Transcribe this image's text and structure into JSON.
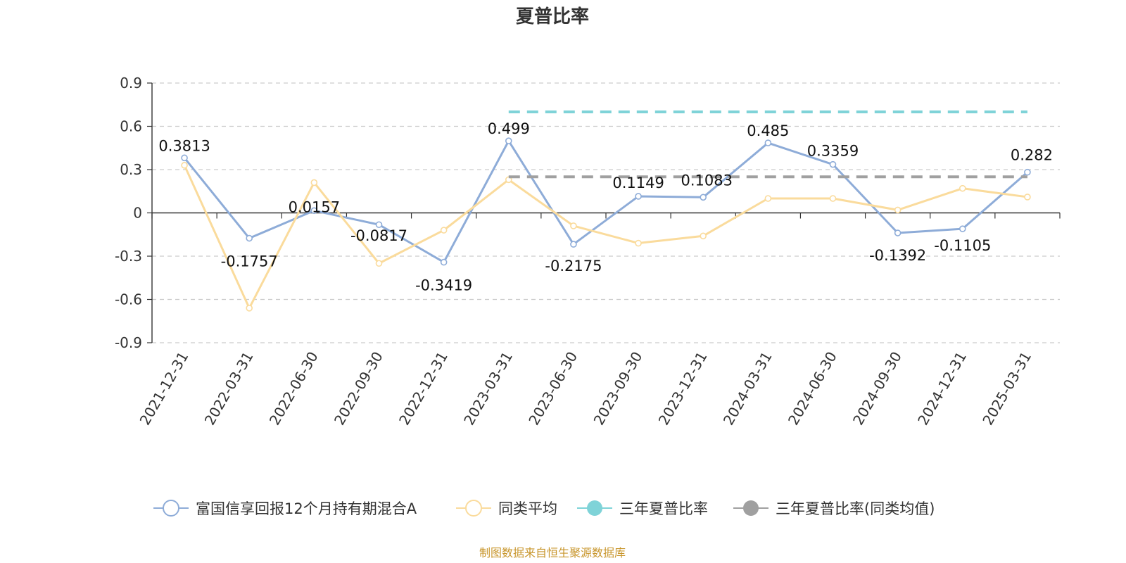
{
  "chart_data": {
    "type": "line",
    "title": "夏普比率",
    "categories": [
      "2021-12-31",
      "2022-03-31",
      "2022-06-30",
      "2022-09-30",
      "2022-12-31",
      "2023-03-31",
      "2023-06-30",
      "2023-09-30",
      "2023-12-31",
      "2024-03-31",
      "2024-06-30",
      "2024-09-30",
      "2024-12-31",
      "2025-03-31"
    ],
    "ylim": [
      -0.9,
      0.9
    ],
    "yticks": [
      "0.9",
      "0.6",
      "0.3",
      "0",
      "-0.3",
      "-0.6",
      "-0.9"
    ],
    "grid": true,
    "legend_position": "bottom",
    "series": [
      {
        "name": "富国信享回报12个月持有期混合A",
        "color": "#8eacd8",
        "values": [
          0.3813,
          -0.1757,
          0.0157,
          -0.0817,
          -0.3419,
          0.499,
          -0.2175,
          0.1149,
          0.1083,
          0.485,
          0.3359,
          -0.1392,
          -0.1105,
          0.282
        ],
        "labels": [
          "0.3813",
          "-0.1757",
          "0.0157",
          "-0.0817",
          "-0.3419",
          "0.499",
          "-0.2175",
          "0.1149",
          "0.1083",
          "0.485",
          "0.3359",
          "-0.1392",
          "-0.1105",
          "0.282"
        ]
      },
      {
        "name": "同类平均",
        "color": "#fadb9c",
        "values": [
          0.33,
          -0.66,
          0.21,
          -0.35,
          -0.12,
          0.23,
          -0.09,
          -0.21,
          -0.16,
          0.1,
          0.1,
          0.02,
          0.17,
          0.11
        ]
      },
      {
        "name": "三年夏普比率",
        "color": "#7fd3d8",
        "dashed": true,
        "values": [
          null,
          null,
          null,
          null,
          null,
          0.7,
          0.7,
          0.7,
          0.7,
          0.7,
          0.7,
          0.7,
          0.7,
          0.7
        ]
      },
      {
        "name": "三年夏普比率(同类均值)",
        "color": "#a0a0a0",
        "dashed": true,
        "values": [
          null,
          null,
          null,
          null,
          null,
          0.25,
          0.25,
          0.25,
          0.25,
          0.25,
          0.25,
          0.25,
          0.25,
          0.25
        ]
      }
    ],
    "source": "制图数据来自恒生聚源数据库"
  }
}
